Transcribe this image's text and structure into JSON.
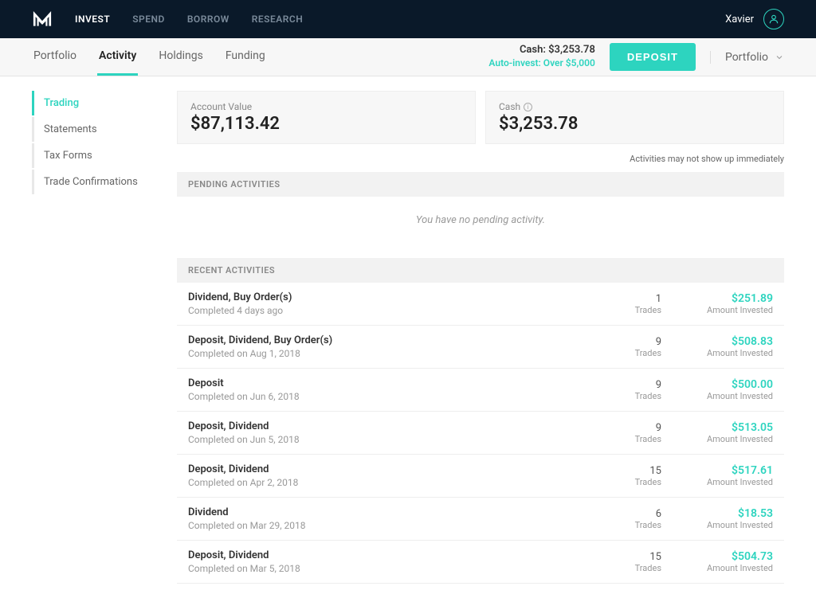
{
  "colors": {
    "accent": "#2dd4bf",
    "nav_bg": "#0a1929"
  },
  "topnav": {
    "items": [
      {
        "label": "INVEST",
        "active": true
      },
      {
        "label": "SPEND",
        "active": false
      },
      {
        "label": "BORROW",
        "active": false
      },
      {
        "label": "RESEARCH",
        "active": false
      }
    ],
    "user_name": "Xavier"
  },
  "subnav": {
    "tabs": [
      {
        "label": "Portfolio",
        "active": false
      },
      {
        "label": "Activity",
        "active": true
      },
      {
        "label": "Holdings",
        "active": false
      },
      {
        "label": "Funding",
        "active": false
      }
    ],
    "cash_label": "Cash: $3,253.78",
    "auto_invest": "Auto-invest: Over $5,000",
    "deposit_label": "DEPOSIT",
    "dropdown_label": "Portfolio"
  },
  "sidebar": {
    "items": [
      {
        "label": "Trading",
        "active": true
      },
      {
        "label": "Statements",
        "active": false
      },
      {
        "label": "Tax Forms",
        "active": false
      },
      {
        "label": "Trade Confirmations",
        "active": false
      }
    ]
  },
  "cards": {
    "account_value": {
      "label": "Account Value",
      "value": "$87,113.42"
    },
    "cash": {
      "label": "Cash",
      "value": "$3,253.78"
    }
  },
  "notice": "Activities may not show up immediately",
  "sections": {
    "pending_header": "PENDING ACTIVITIES",
    "pending_empty": "You have no pending activity.",
    "recent_header": "RECENT ACTIVITIES"
  },
  "trades_label": "Trades",
  "amount_label": "Amount Invested",
  "activities": [
    {
      "title": "Dividend, Buy Order(s)",
      "sub": "Completed 4 days ago",
      "trades": "1",
      "amount": "$251.89"
    },
    {
      "title": "Deposit, Dividend, Buy Order(s)",
      "sub": "Completed on Aug 1, 2018",
      "trades": "9",
      "amount": "$508.83"
    },
    {
      "title": "Deposit",
      "sub": "Completed on Jun 6, 2018",
      "trades": "9",
      "amount": "$500.00"
    },
    {
      "title": "Deposit, Dividend",
      "sub": "Completed on Jun 5, 2018",
      "trades": "9",
      "amount": "$513.05"
    },
    {
      "title": "Deposit, Dividend",
      "sub": "Completed on Apr 2, 2018",
      "trades": "15",
      "amount": "$517.61"
    },
    {
      "title": "Dividend",
      "sub": "Completed on Mar 29, 2018",
      "trades": "6",
      "amount": "$18.53"
    },
    {
      "title": "Deposit, Dividend",
      "sub": "Completed on Mar 5, 2018",
      "trades": "15",
      "amount": "$504.73"
    }
  ]
}
